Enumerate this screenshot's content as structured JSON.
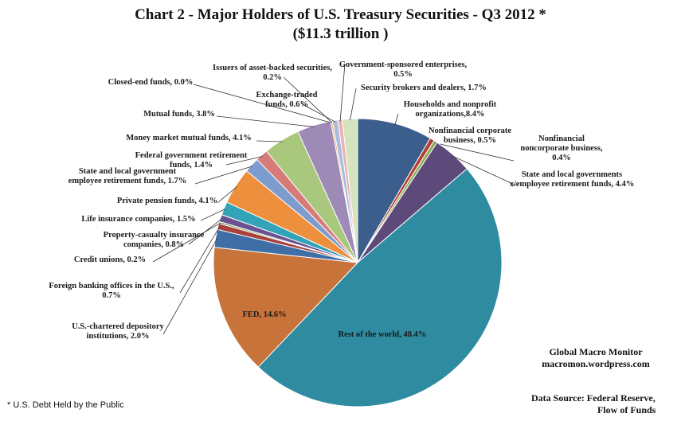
{
  "chart_data": {
    "type": "pie",
    "title": "Chart 2 - Major Holders of U.S. Treasury Securities - Q3 2012 *",
    "subtitle": "($11.3 trillion )",
    "slices": [
      {
        "label": "Households and nonprofit organizations,8.4%",
        "value": 8.4,
        "color": "#3C5E8C"
      },
      {
        "label": "Nonfinancial corporate business, 0.5%",
        "value": 0.5,
        "color": "#B23C36"
      },
      {
        "label": "Nonfinancial noncorporate business, 0.4%",
        "value": 0.4,
        "color": "#8BAD55"
      },
      {
        "label": "State and local governments x/employee retirement funds, 4.4%",
        "value": 4.4,
        "color": "#5E4A7A"
      },
      {
        "label": "Rest of the world, 48.4%",
        "value": 48.4,
        "color": "#2E8BA0"
      },
      {
        "label": "FED, 14.6%",
        "value": 14.6,
        "color": "#C8733A"
      },
      {
        "label": "U.S.-chartered depository institutions, 2.0%",
        "value": 2.0,
        "color": "#3F6EA6"
      },
      {
        "label": "Foreign banking offices in the U.S., 0.7%",
        "value": 0.7,
        "color": "#A8403C"
      },
      {
        "label": "Credit unions, 0.2%",
        "value": 0.2,
        "color": "#7A9A48"
      },
      {
        "label": "Property-casualty insurance companies, 0.8%",
        "value": 0.8,
        "color": "#6A5292"
      },
      {
        "label": "Life insurance companies, 1.5%",
        "value": 1.5,
        "color": "#33A3B8"
      },
      {
        "label": "Private pension funds, 4.1%",
        "value": 4.1,
        "color": "#EE8F3E"
      },
      {
        "label": "State and local government employee retirement funds, 1.7%",
        "value": 1.7,
        "color": "#7B9CCC"
      },
      {
        "label": "Federal government retirement funds, 1.4%",
        "value": 1.4,
        "color": "#D77B78"
      },
      {
        "label": "Money market mutual funds, 4.1%",
        "value": 4.1,
        "color": "#A9C77D"
      },
      {
        "label": "Mutual funds, 3.8%",
        "value": 3.8,
        "color": "#9E8AB6"
      },
      {
        "label": "Closed-end funds, 0.0%",
        "value": 0.0,
        "color": "#7CC4D5"
      },
      {
        "label": "Issuers of asset-backed securities, 0.2%",
        "value": 0.2,
        "color": "#F2A967"
      },
      {
        "label": "Exchange-traded funds, 0.6%",
        "value": 0.6,
        "color": "#A9BDE0"
      },
      {
        "label": "Government-sponsored enterprises, 0.5%",
        "value": 0.5,
        "color": "#E9B4B1"
      },
      {
        "label": "Security brokers and dealers, 1.7%",
        "value": 1.7,
        "color": "#D6E3BF"
      }
    ]
  },
  "footnote": "* U.S. Debt Held by the Public",
  "brand": {
    "line1": "Global Macro Monitor",
    "line2": "macromon.wordpress.com"
  },
  "source": {
    "line1": "Data Source:   Federal Reserve,",
    "line2": "Flow of Funds"
  }
}
